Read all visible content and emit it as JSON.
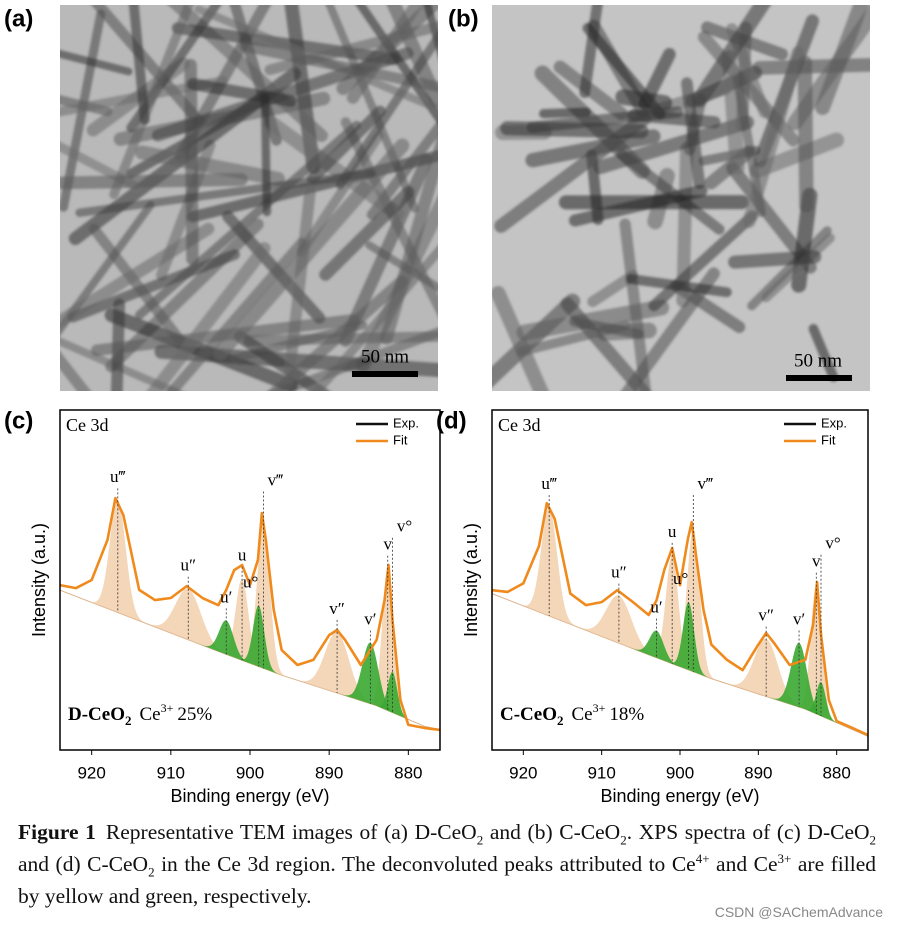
{
  "panels": [
    {
      "label": "(a)",
      "scale_bar": "50 nm"
    },
    {
      "label": "(b)",
      "scale_bar": "50 nm"
    }
  ],
  "chart_data": [
    {
      "type": "line",
      "panel_label": "(c)",
      "annotation": "Ce 3d",
      "xlabel": "Binding energy (eV)",
      "ylabel": "Intensity (a.u.)",
      "xlim": [
        924,
        876
      ],
      "ylim": [
        0,
        100
      ],
      "xticks": [
        920,
        910,
        900,
        890,
        880
      ],
      "x": [
        924,
        922,
        920,
        918,
        917,
        916,
        914,
        912,
        910,
        908,
        906,
        904,
        903,
        902,
        901,
        900,
        899,
        898.5,
        898,
        897,
        896,
        894,
        892,
        890,
        889,
        888,
        886,
        884,
        883,
        882.5,
        882,
        881,
        880,
        878,
        876
      ],
      "series": [
        {
          "name": "Exp.",
          "color": "#111111",
          "values": [
            48.5,
            47.6,
            50,
            61.8,
            74.1,
            69.1,
            47.1,
            44.1,
            44.7,
            48.2,
            44.7,
            42.6,
            47.1,
            52.9,
            54.4,
            48.5,
            55.9,
            69.7,
            61.8,
            41.2,
            29.4,
            25,
            26.5,
            33.8,
            35.3,
            32.4,
            25,
            32.4,
            44.1,
            54.4,
            38.2,
            14.7,
            7.4,
            6.5,
            5.9
          ]
        },
        {
          "name": "Fit",
          "color": "#f08a1c",
          "values": [
            48.5,
            47.6,
            50,
            61.8,
            74.1,
            69.1,
            47.1,
            44.1,
            44.7,
            48.2,
            44.7,
            42.6,
            47.1,
            52.9,
            54.4,
            48.5,
            55.9,
            69.7,
            61.8,
            41.2,
            29.4,
            25,
            26.5,
            33.8,
            35.3,
            32.4,
            25,
            32.4,
            44.1,
            54.4,
            38.2,
            14.7,
            7.4,
            6.5,
            5.9
          ]
        }
      ],
      "background_x": [
        924,
        904,
        896,
        884,
        878,
        876
      ],
      "background_values": [
        47,
        29,
        22,
        13,
        7,
        6
      ],
      "components": [
        {
          "label": "u‴",
          "center": 916.7,
          "height": 33,
          "width": 1.0,
          "color": "#f0c59b"
        },
        {
          "label": "u″",
          "center": 907.8,
          "height": 15,
          "width": 1.6,
          "color": "#f0c59b"
        },
        {
          "label": "u′",
          "center": 903.0,
          "height": 10,
          "width": 0.9,
          "color": "#3aa832"
        },
        {
          "label": "u",
          "center": 901.0,
          "height": 24,
          "width": 0.8,
          "color": "#f0c59b"
        },
        {
          "label": "u°",
          "center": 898.9,
          "height": 18,
          "width": 0.7,
          "color": "#3aa832"
        },
        {
          "label": "v‴",
          "center": 898.3,
          "height": 42,
          "width": 0.8,
          "color": "#f0c59b"
        },
        {
          "label": "v″",
          "center": 889.0,
          "height": 18,
          "width": 1.5,
          "color": "#f0c59b"
        },
        {
          "label": "v′",
          "center": 884.8,
          "height": 18,
          "width": 1.0,
          "color": "#3aa832"
        },
        {
          "label": "v",
          "center": 882.6,
          "height": 42,
          "width": 0.7,
          "color": "#f0c59b"
        },
        {
          "label": "v°",
          "center": 882.0,
          "height": 12,
          "width": 0.6,
          "color": "#3aa832"
        }
      ],
      "sample": {
        "name": "D-CeO",
        "sub": "2",
        "ion": "Ce",
        "sup": "3+",
        "fraction": "25%"
      }
    },
    {
      "type": "line",
      "panel_label": "(d)",
      "annotation": "Ce 3d",
      "xlabel": "Binding energy (eV)",
      "ylabel": "Intensity (a.u.)",
      "xlim": [
        924,
        876
      ],
      "ylim": [
        0,
        100
      ],
      "xticks": [
        920,
        910,
        900,
        890,
        880
      ],
      "x": [
        924,
        922,
        920,
        918,
        917,
        916,
        914,
        912,
        910,
        908,
        906,
        904,
        903,
        902,
        901,
        900,
        899,
        898.5,
        898,
        897,
        896,
        894,
        892,
        890,
        889,
        888,
        886,
        884,
        883,
        882.5,
        882,
        881,
        880,
        878,
        876
      ],
      "series": [
        {
          "name": "Exp.",
          "color": "#111111",
          "values": [
            47,
            46.5,
            49,
            60,
            72.6,
            68,
            46,
            42.6,
            43.5,
            47,
            43.5,
            39.7,
            44,
            53,
            59.4,
            48.5,
            62,
            67,
            58,
            41.2,
            31,
            26.5,
            23.5,
            31,
            34.4,
            31.5,
            25,
            26.5,
            37,
            49.4,
            34,
            14.7,
            8.5,
            6.5,
            4.4
          ]
        },
        {
          "name": "Fit",
          "color": "#f08a1c",
          "values": [
            47,
            46.5,
            49,
            60,
            72.6,
            68,
            46,
            42.6,
            43.5,
            47,
            43.5,
            39.7,
            44,
            53,
            59.4,
            48.5,
            62,
            67,
            58,
            41.2,
            31,
            26.5,
            23.5,
            31,
            34.4,
            31.5,
            25,
            26.5,
            37,
            49.4,
            34,
            14.7,
            8.5,
            6.5,
            4.4
          ]
        }
      ],
      "background_x": [
        924,
        904,
        896,
        884,
        878,
        876
      ],
      "background_values": [
        46,
        28,
        21,
        12,
        6,
        4
      ],
      "components": [
        {
          "label": "u‴",
          "center": 916.7,
          "height": 32,
          "width": 1.0,
          "color": "#f0c59b"
        },
        {
          "label": "u″",
          "center": 907.8,
          "height": 14,
          "width": 1.6,
          "color": "#f0c59b"
        },
        {
          "label": "u′",
          "center": 903.0,
          "height": 8,
          "width": 0.9,
          "color": "#3aa832"
        },
        {
          "label": "u",
          "center": 901.0,
          "height": 32,
          "width": 0.8,
          "color": "#f0c59b"
        },
        {
          "label": "u°",
          "center": 898.9,
          "height": 20,
          "width": 0.7,
          "color": "#3aa832"
        },
        {
          "label": "v‴",
          "center": 898.3,
          "height": 42,
          "width": 0.8,
          "color": "#f0c59b"
        },
        {
          "label": "v″",
          "center": 889.0,
          "height": 17,
          "width": 1.5,
          "color": "#f0c59b"
        },
        {
          "label": "v′",
          "center": 884.8,
          "height": 19,
          "width": 1.0,
          "color": "#3aa832"
        },
        {
          "label": "v",
          "center": 882.6,
          "height": 38,
          "width": 0.7,
          "color": "#f0c59b"
        },
        {
          "label": "v°",
          "center": 882.0,
          "height": 10,
          "width": 0.6,
          "color": "#3aa832"
        }
      ],
      "sample": {
        "name": "C-CeO",
        "sub": "2",
        "ion": "Ce",
        "sup": "3+",
        "fraction": "18%"
      }
    }
  ],
  "caption": {
    "figure": "Figure 1",
    "parts": [
      "Representative TEM images of (a) D-CeO",
      "2",
      " and (b) C-CeO",
      "2",
      ". XPS spectra of (c) D-CeO",
      "2",
      " and (d) C-CeO",
      "2",
      " in the Ce 3d region. The deconvoluted peaks attributed to Ce",
      "4+",
      " and Ce",
      "3+",
      " are filled by yellow and green, respectively."
    ]
  },
  "watermark": "CSDN @SAChemAdvance"
}
